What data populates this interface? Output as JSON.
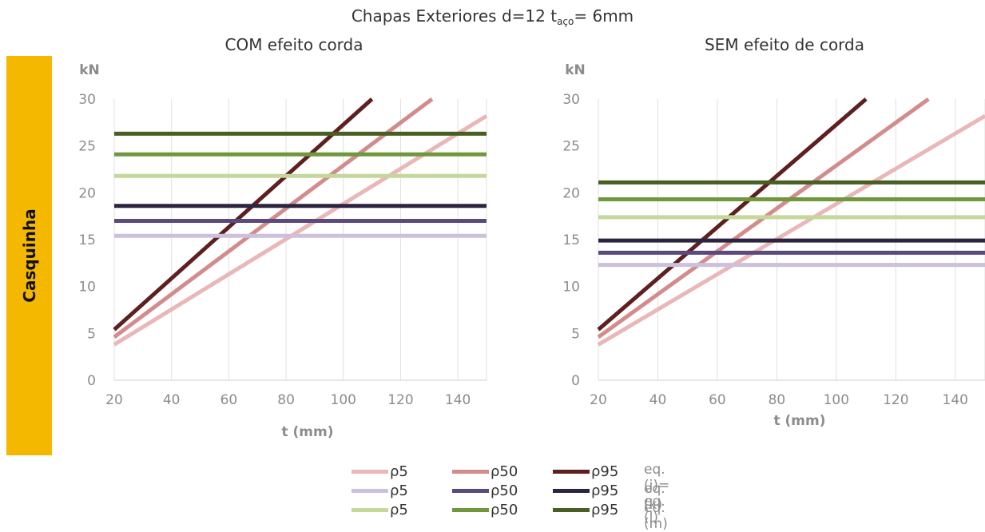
{
  "title": {
    "prefix": "Chapas Exteriores   d=12   t",
    "subscript": "aço",
    "suffix": "= 6mm"
  },
  "side_label": "Casquinha",
  "colors": {
    "tab": "#f5b800",
    "grid": "#e0e0e0",
    "pink_p5": "#e9b7b7",
    "pink_p50": "#d38c8c",
    "pink_p95": "#5e1f1f",
    "purple_p5": "#ccc0dc",
    "purple_p50": "#5b4a7e",
    "purple_p95": "#2c2440",
    "green_p5": "#c3d89a",
    "green_p50": "#71973d",
    "green_p95": "#485e22"
  },
  "legend": {
    "rows": [
      {
        "items": [
          {
            "label": "ρ5",
            "color": "#e9b7b7"
          },
          {
            "label": "ρ50",
            "color": "#d38c8c"
          },
          {
            "label": "ρ95",
            "color": "#5e1f1f"
          }
        ],
        "eq": "eq.(j)= eq.(l)"
      },
      {
        "items": [
          {
            "label": "ρ5",
            "color": "#ccc0dc"
          },
          {
            "label": "ρ50",
            "color": "#5b4a7e"
          },
          {
            "label": "ρ95",
            "color": "#2c2440"
          }
        ],
        "eq": "eq.(k)"
      },
      {
        "items": [
          {
            "label": "ρ5",
            "color": "#c3d89a"
          },
          {
            "label": "ρ50",
            "color": "#71973d"
          },
          {
            "label": "ρ95",
            "color": "#485e22"
          }
        ],
        "eq": "eq.(m)"
      }
    ]
  },
  "chart_data": [
    {
      "type": "line",
      "title": "COM efeito corda",
      "xlabel": "t (mm)",
      "ylabel": "kN",
      "xlim": [
        20,
        150
      ],
      "ylim": [
        0,
        30
      ],
      "xticks": [
        20,
        40,
        60,
        80,
        100,
        120,
        140
      ],
      "yticks": [
        0,
        5,
        10,
        15,
        20,
        25,
        30
      ],
      "grid": "vertical",
      "series": [
        {
          "group": "eq.(j)= eq.(l)",
          "density": "ρ5",
          "color": "#e9b7b7",
          "x": [
            20,
            150
          ],
          "y": [
            3.8,
            28.2
          ]
        },
        {
          "group": "eq.(j)= eq.(l)",
          "density": "ρ50",
          "color": "#d38c8c",
          "x": [
            20,
            131
          ],
          "y": [
            4.6,
            30
          ]
        },
        {
          "group": "eq.(j)= eq.(l)",
          "density": "ρ95",
          "color": "#5e1f1f",
          "x": [
            20,
            110
          ],
          "y": [
            5.4,
            30
          ]
        },
        {
          "group": "eq.(k)",
          "density": "ρ5",
          "color": "#ccc0dc",
          "x": [
            20,
            150
          ],
          "y": [
            15.4,
            15.4
          ]
        },
        {
          "group": "eq.(k)",
          "density": "ρ50",
          "color": "#5b4a7e",
          "x": [
            20,
            150
          ],
          "y": [
            17.0,
            17.0
          ]
        },
        {
          "group": "eq.(k)",
          "density": "ρ95",
          "color": "#2c2440",
          "x": [
            20,
            150
          ],
          "y": [
            18.6,
            18.6
          ]
        },
        {
          "group": "eq.(m)",
          "density": "ρ5",
          "color": "#c3d89a",
          "x": [
            20,
            150
          ],
          "y": [
            21.8,
            21.8
          ]
        },
        {
          "group": "eq.(m)",
          "density": "ρ50",
          "color": "#71973d",
          "x": [
            20,
            150
          ],
          "y": [
            24.1,
            24.1
          ]
        },
        {
          "group": "eq.(m)",
          "density": "ρ95",
          "color": "#485e22",
          "x": [
            20,
            150
          ],
          "y": [
            26.3,
            26.3
          ]
        }
      ]
    },
    {
      "type": "line",
      "title": "SEM efeito de corda",
      "xlabel": "t (mm)",
      "ylabel": "kN",
      "xlim": [
        20,
        150
      ],
      "ylim": [
        0,
        30
      ],
      "xticks": [
        20,
        40,
        60,
        80,
        100,
        120,
        140
      ],
      "yticks": [
        0,
        5,
        10,
        15,
        20,
        25,
        30
      ],
      "grid": "vertical",
      "series": [
        {
          "group": "eq.(j)= eq.(l)",
          "density": "ρ5",
          "color": "#e9b7b7",
          "x": [
            20,
            150
          ],
          "y": [
            3.8,
            28.2
          ]
        },
        {
          "group": "eq.(j)= eq.(l)",
          "density": "ρ50",
          "color": "#d38c8c",
          "x": [
            20,
            131
          ],
          "y": [
            4.6,
            30
          ]
        },
        {
          "group": "eq.(j)= eq.(l)",
          "density": "ρ95",
          "color": "#5e1f1f",
          "x": [
            20,
            110
          ],
          "y": [
            5.4,
            30
          ]
        },
        {
          "group": "eq.(k)",
          "density": "ρ5",
          "color": "#ccc0dc",
          "x": [
            20,
            150
          ],
          "y": [
            12.3,
            12.3
          ]
        },
        {
          "group": "eq.(k)",
          "density": "ρ50",
          "color": "#5b4a7e",
          "x": [
            20,
            150
          ],
          "y": [
            13.6,
            13.6
          ]
        },
        {
          "group": "eq.(k)",
          "density": "ρ95",
          "color": "#2c2440",
          "x": [
            20,
            150
          ],
          "y": [
            14.9,
            14.9
          ]
        },
        {
          "group": "eq.(m)",
          "density": "ρ5",
          "color": "#c3d89a",
          "x": [
            20,
            150
          ],
          "y": [
            17.4,
            17.4
          ]
        },
        {
          "group": "eq.(m)",
          "density": "ρ50",
          "color": "#71973d",
          "x": [
            20,
            150
          ],
          "y": [
            19.3,
            19.3
          ]
        },
        {
          "group": "eq.(m)",
          "density": "ρ95",
          "color": "#485e22",
          "x": [
            20,
            150
          ],
          "y": [
            21.1,
            21.1
          ]
        }
      ]
    }
  ]
}
